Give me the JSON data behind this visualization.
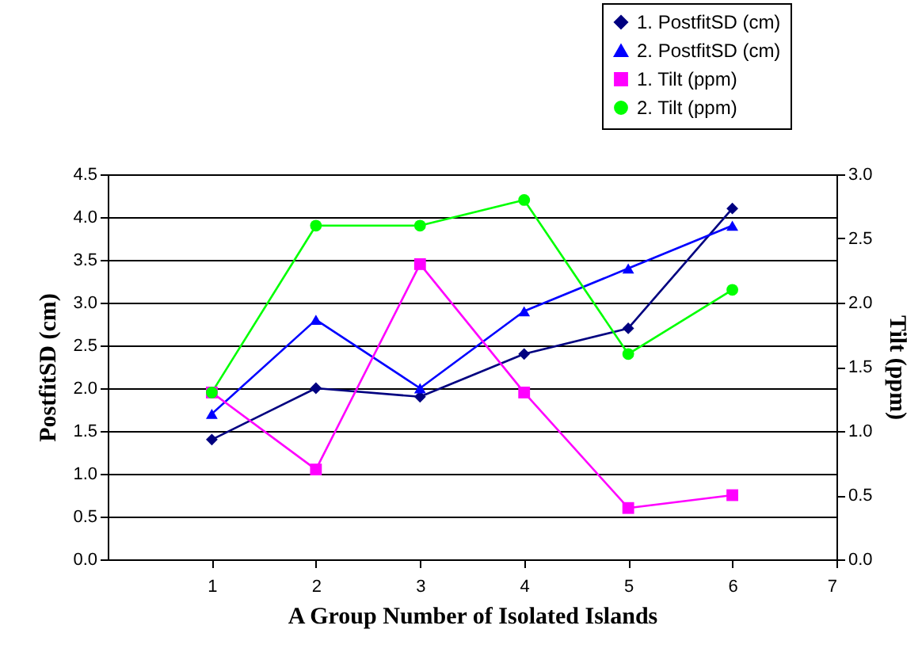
{
  "chart_data": {
    "type": "line",
    "xlabel": "A Group Number of Isolated Islands",
    "ylabel": "PostfitSD (cm)",
    "y2label": "Tilt (ppm)",
    "x": [
      1,
      2,
      3,
      4,
      5,
      6
    ],
    "xlim": [
      0,
      7
    ],
    "xticks": [
      1,
      2,
      3,
      4,
      5,
      6,
      7
    ],
    "ylim": [
      0,
      4.5
    ],
    "yticks": [
      {
        "value": 0,
        "label": "0.0"
      },
      0.5,
      {
        "value": 1,
        "label": "1.0"
      },
      1.5,
      {
        "value": 2,
        "label": "2.0"
      },
      2.5,
      {
        "value": 3,
        "label": "3.0"
      },
      3.5,
      {
        "value": 4,
        "label": "4.0"
      },
      4.5
    ],
    "y2lim": [
      0,
      3
    ],
    "y2ticks": [
      {
        "value": 0,
        "label": "0.0"
      },
      0.5,
      {
        "value": 1,
        "label": "1.0"
      },
      1.5,
      {
        "value": 2,
        "label": "2.0"
      },
      2.5,
      {
        "value": 3,
        "label": "3.0"
      }
    ],
    "grid": "y",
    "legend": "top right",
    "line_style": "solid",
    "series": [
      {
        "name": "1. PostfitSD (cm)",
        "color": "#000080",
        "marker": "diamond",
        "values": [
          1.4,
          2.0,
          1.9,
          2.4,
          2.7,
          4.1
        ]
      },
      {
        "name": "2. PostfitSD (cm)",
        "color": "#0000ff",
        "marker": "triangle",
        "values": [
          1.7,
          2.8,
          2.0,
          2.9,
          3.4,
          3.9
        ]
      },
      {
        "name": "1. Tilt (ppm)",
        "color": "#ff00ff",
        "marker": "square",
        "axis": "y2",
        "values": [
          1.3,
          0.7,
          2.3,
          1.3,
          0.4,
          0.5
        ]
      },
      {
        "name": "2. Tilt (ppm)",
        "color": "#00ff00",
        "marker": "circle",
        "axis": "y2",
        "values": [
          1.3,
          2.6,
          2.6,
          2.8,
          1.6,
          2.1
        ]
      }
    ]
  }
}
